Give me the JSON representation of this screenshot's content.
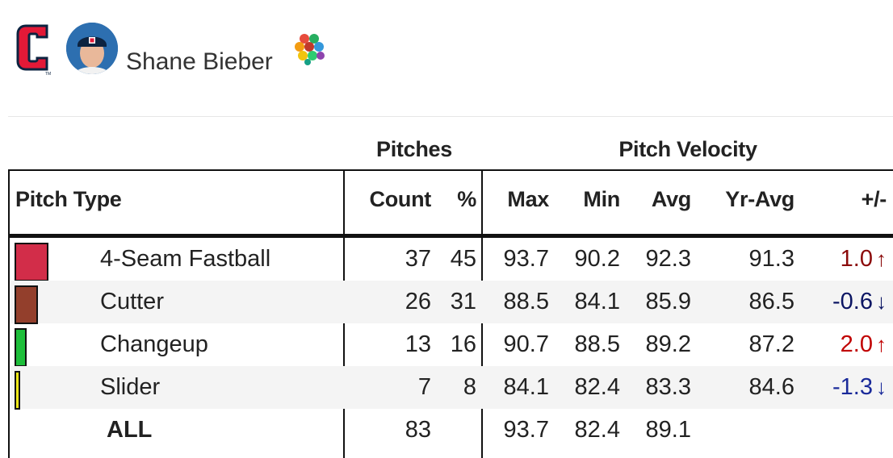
{
  "header": {
    "player_name": "Shane Bieber",
    "team_logo_icon": "cleveland-c-logo-icon",
    "avatar_icon": "player-headshot-icon",
    "badge_icon": "rainbow-dots-icon"
  },
  "table": {
    "group_headers": {
      "pitches": "Pitches",
      "velocity": "Pitch Velocity"
    },
    "columns": {
      "pitch_type": "Pitch Type",
      "count": "Count",
      "pct": "%",
      "max": "Max",
      "min": "Min",
      "avg": "Avg",
      "yr_avg": "Yr-Avg",
      "delta": "+/-"
    },
    "rows": [
      {
        "pitch_type": "4-Seam Fastball",
        "count": "37",
        "pct": "45",
        "max": "93.7",
        "min": "90.2",
        "avg": "92.3",
        "yr_avg": "91.3",
        "delta": "1.0",
        "direction": "up",
        "swatch_color": "#d22d49",
        "delta_color": "#8b0a0a",
        "pct_share": 45
      },
      {
        "pitch_type": "Cutter",
        "count": "26",
        "pct": "31",
        "max": "88.5",
        "min": "84.1",
        "avg": "85.9",
        "yr_avg": "86.5",
        "delta": "-0.6",
        "direction": "down",
        "swatch_color": "#933f2c",
        "delta_color": "#0b1563",
        "pct_share": 31
      },
      {
        "pitch_type": "Changeup",
        "count": "13",
        "pct": "16",
        "max": "90.7",
        "min": "88.5",
        "avg": "89.2",
        "yr_avg": "87.2",
        "delta": "2.0",
        "direction": "up",
        "swatch_color": "#1dbe3a",
        "delta_color": "#c00000",
        "pct_share": 16
      },
      {
        "pitch_type": "Slider",
        "count": "7",
        "pct": "8",
        "max": "84.1",
        "min": "82.4",
        "avg": "83.3",
        "yr_avg": "84.6",
        "delta": "-1.3",
        "direction": "down",
        "swatch_color": "#eee716",
        "delta_color": "#1a2a9a",
        "pct_share": 8
      }
    ],
    "total": {
      "label": "ALL",
      "count": "83",
      "max": "93.7",
      "min": "82.4",
      "avg": "89.1"
    },
    "arrows": {
      "up": "↑",
      "down": "↓"
    }
  },
  "chart_data": {
    "type": "table",
    "columns": [
      "Pitch Type",
      "Count",
      "%",
      "Max",
      "Min",
      "Avg",
      "Yr-Avg",
      "+/-"
    ],
    "rows": [
      [
        "4-Seam Fastball",
        37,
        45,
        93.7,
        90.2,
        92.3,
        91.3,
        1.0
      ],
      [
        "Cutter",
        26,
        31,
        88.5,
        84.1,
        85.9,
        86.5,
        -0.6
      ],
      [
        "Changeup",
        13,
        16,
        90.7,
        88.5,
        89.2,
        87.2,
        2.0
      ],
      [
        "Slider",
        7,
        8,
        84.1,
        82.4,
        83.3,
        84.6,
        -1.3
      ],
      [
        "ALL",
        83,
        null,
        93.7,
        82.4,
        89.1,
        null,
        null
      ]
    ]
  }
}
